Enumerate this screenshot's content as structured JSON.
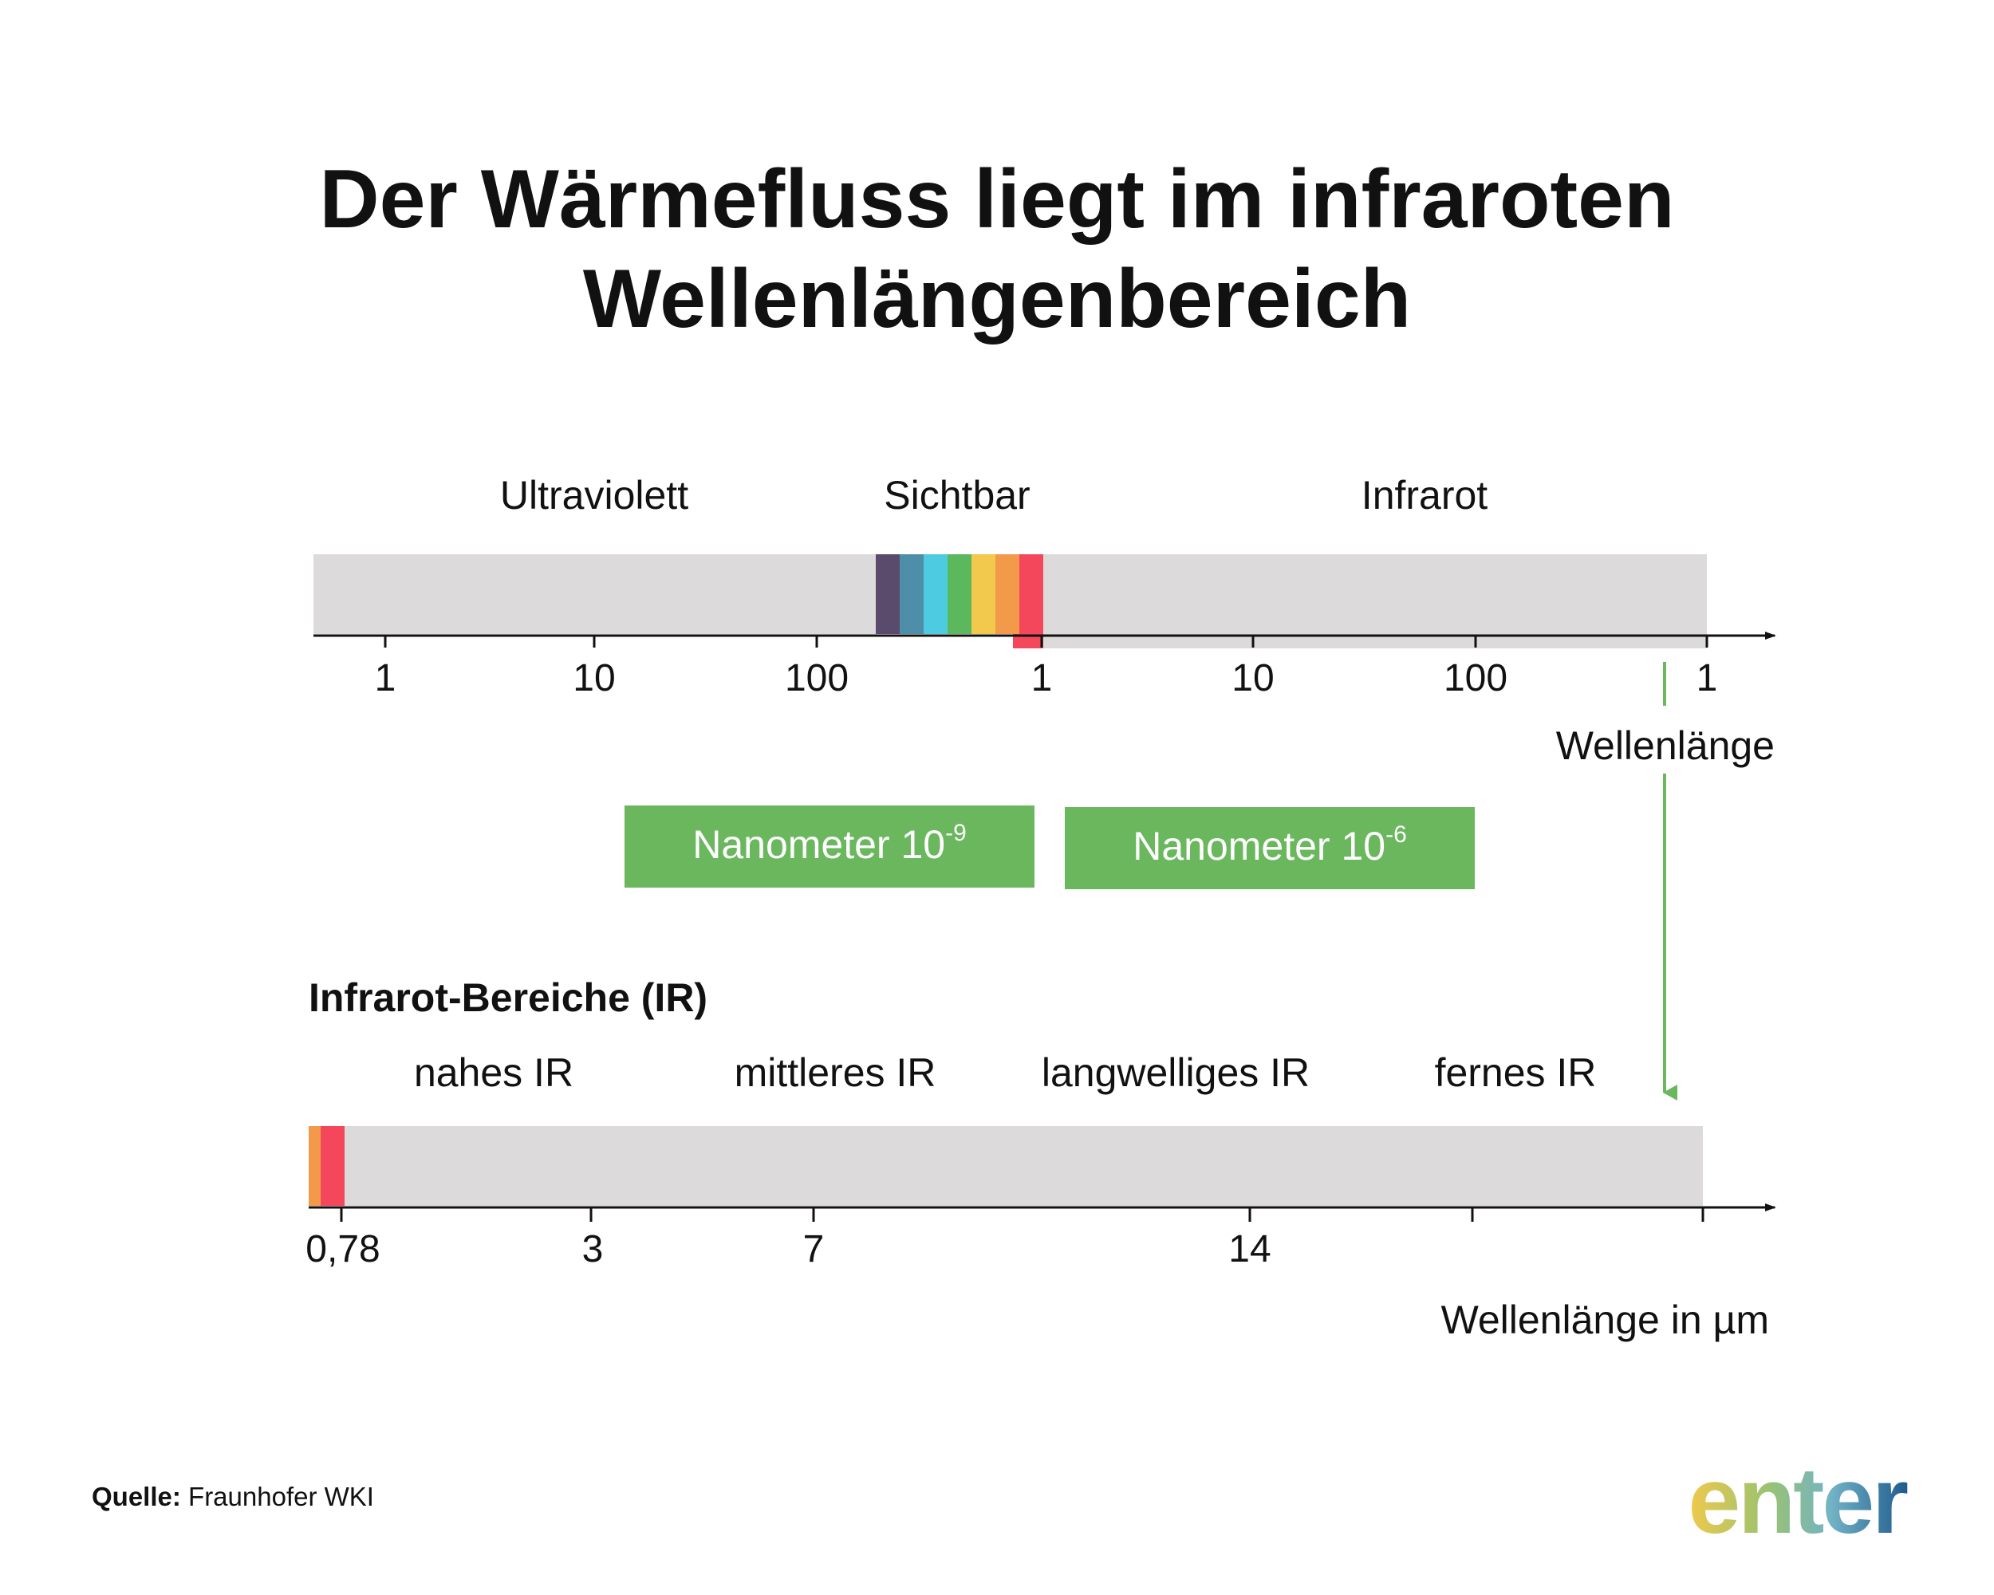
{
  "title": {
    "line1": "Der Wärmefluss liegt im infraroten",
    "line2": "Wellenlängenbereich"
  },
  "spectrum": {
    "region_labels": [
      "Ultraviolett",
      "Sichtbar",
      "Infrarot"
    ],
    "tick_labels": [
      "1",
      "10",
      "100",
      "1",
      "10",
      "100",
      "1"
    ],
    "axis_label": "Wellenlänge",
    "visible_colors": [
      "#5a4a6b",
      "#4f8ea8",
      "#4dcbe0",
      "#5cb85c",
      "#f2c94c",
      "#f2994a",
      "#f5475b"
    ],
    "bar_color": "#dcdadb"
  },
  "units": [
    {
      "label": "Nanometer 10",
      "exponent": "-9"
    },
    {
      "label": "Nanometer 10",
      "exponent": "-6"
    }
  ],
  "ir": {
    "heading": "Infrarot-Bereiche (IR)",
    "region_labels": [
      "nahes IR",
      "mittleres IR",
      "langwelliges IR",
      "fernes IR"
    ],
    "tick_labels": [
      "0,78",
      "3",
      "7",
      "14"
    ],
    "axis_label": "Wellenlänge in µm"
  },
  "source": {
    "label": "Quelle:",
    "value": "Fraunhofer WKI"
  },
  "logo": {
    "text": "enter"
  },
  "colors": {
    "accent_green": "#6ab75e",
    "bar_gray": "#dcdadb",
    "logo_gradient": [
      "#f2c94c",
      "#8ec27a",
      "#6fb0c7",
      "#1f5a8e"
    ]
  }
}
